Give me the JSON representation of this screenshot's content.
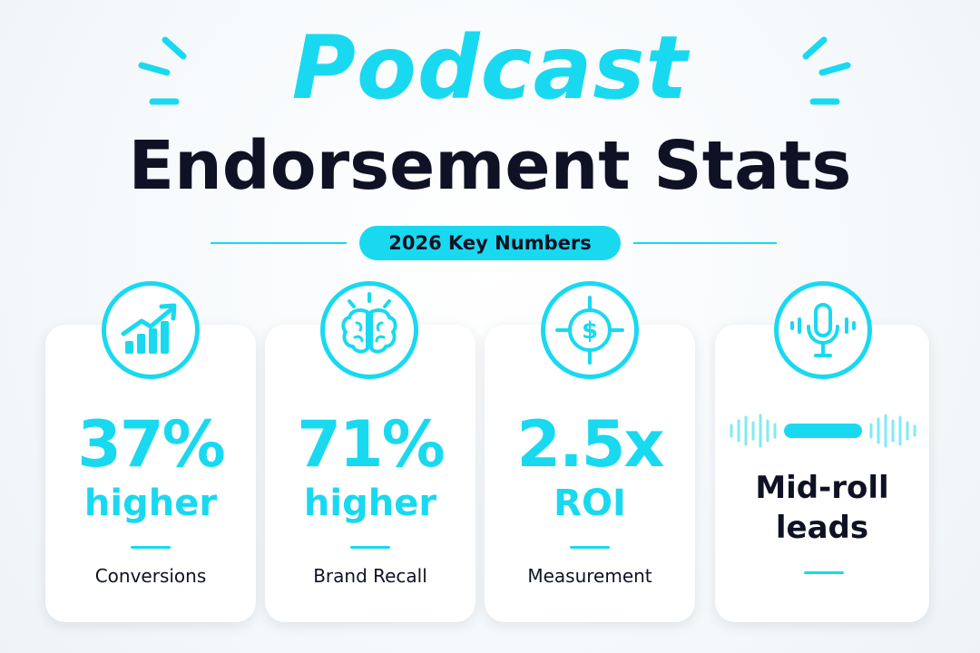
{
  "header": {
    "title_accent": "Podcast",
    "title_main": "Endorsement Stats",
    "badge": "2026 Key Numbers"
  },
  "colors": {
    "accent": "#19d9f0",
    "dark": "#0e1224",
    "card": "#ffffff"
  },
  "stats": [
    {
      "icon": "growth-chart-icon",
      "value": "37%",
      "qualifier": "higher",
      "label": "Conversions"
    },
    {
      "icon": "brain-icon",
      "value": "71%",
      "qualifier": "higher",
      "label": "Brand Recall"
    },
    {
      "icon": "dollar-target-icon",
      "value": "2.5x",
      "qualifier": "ROI",
      "label": "Measurement"
    },
    {
      "icon": "microphone-icon",
      "value": "",
      "qualifier": "",
      "label": "Mid-roll leads"
    }
  ],
  "midroll": {
    "line1": "Mid-roll",
    "line2": "leads"
  }
}
